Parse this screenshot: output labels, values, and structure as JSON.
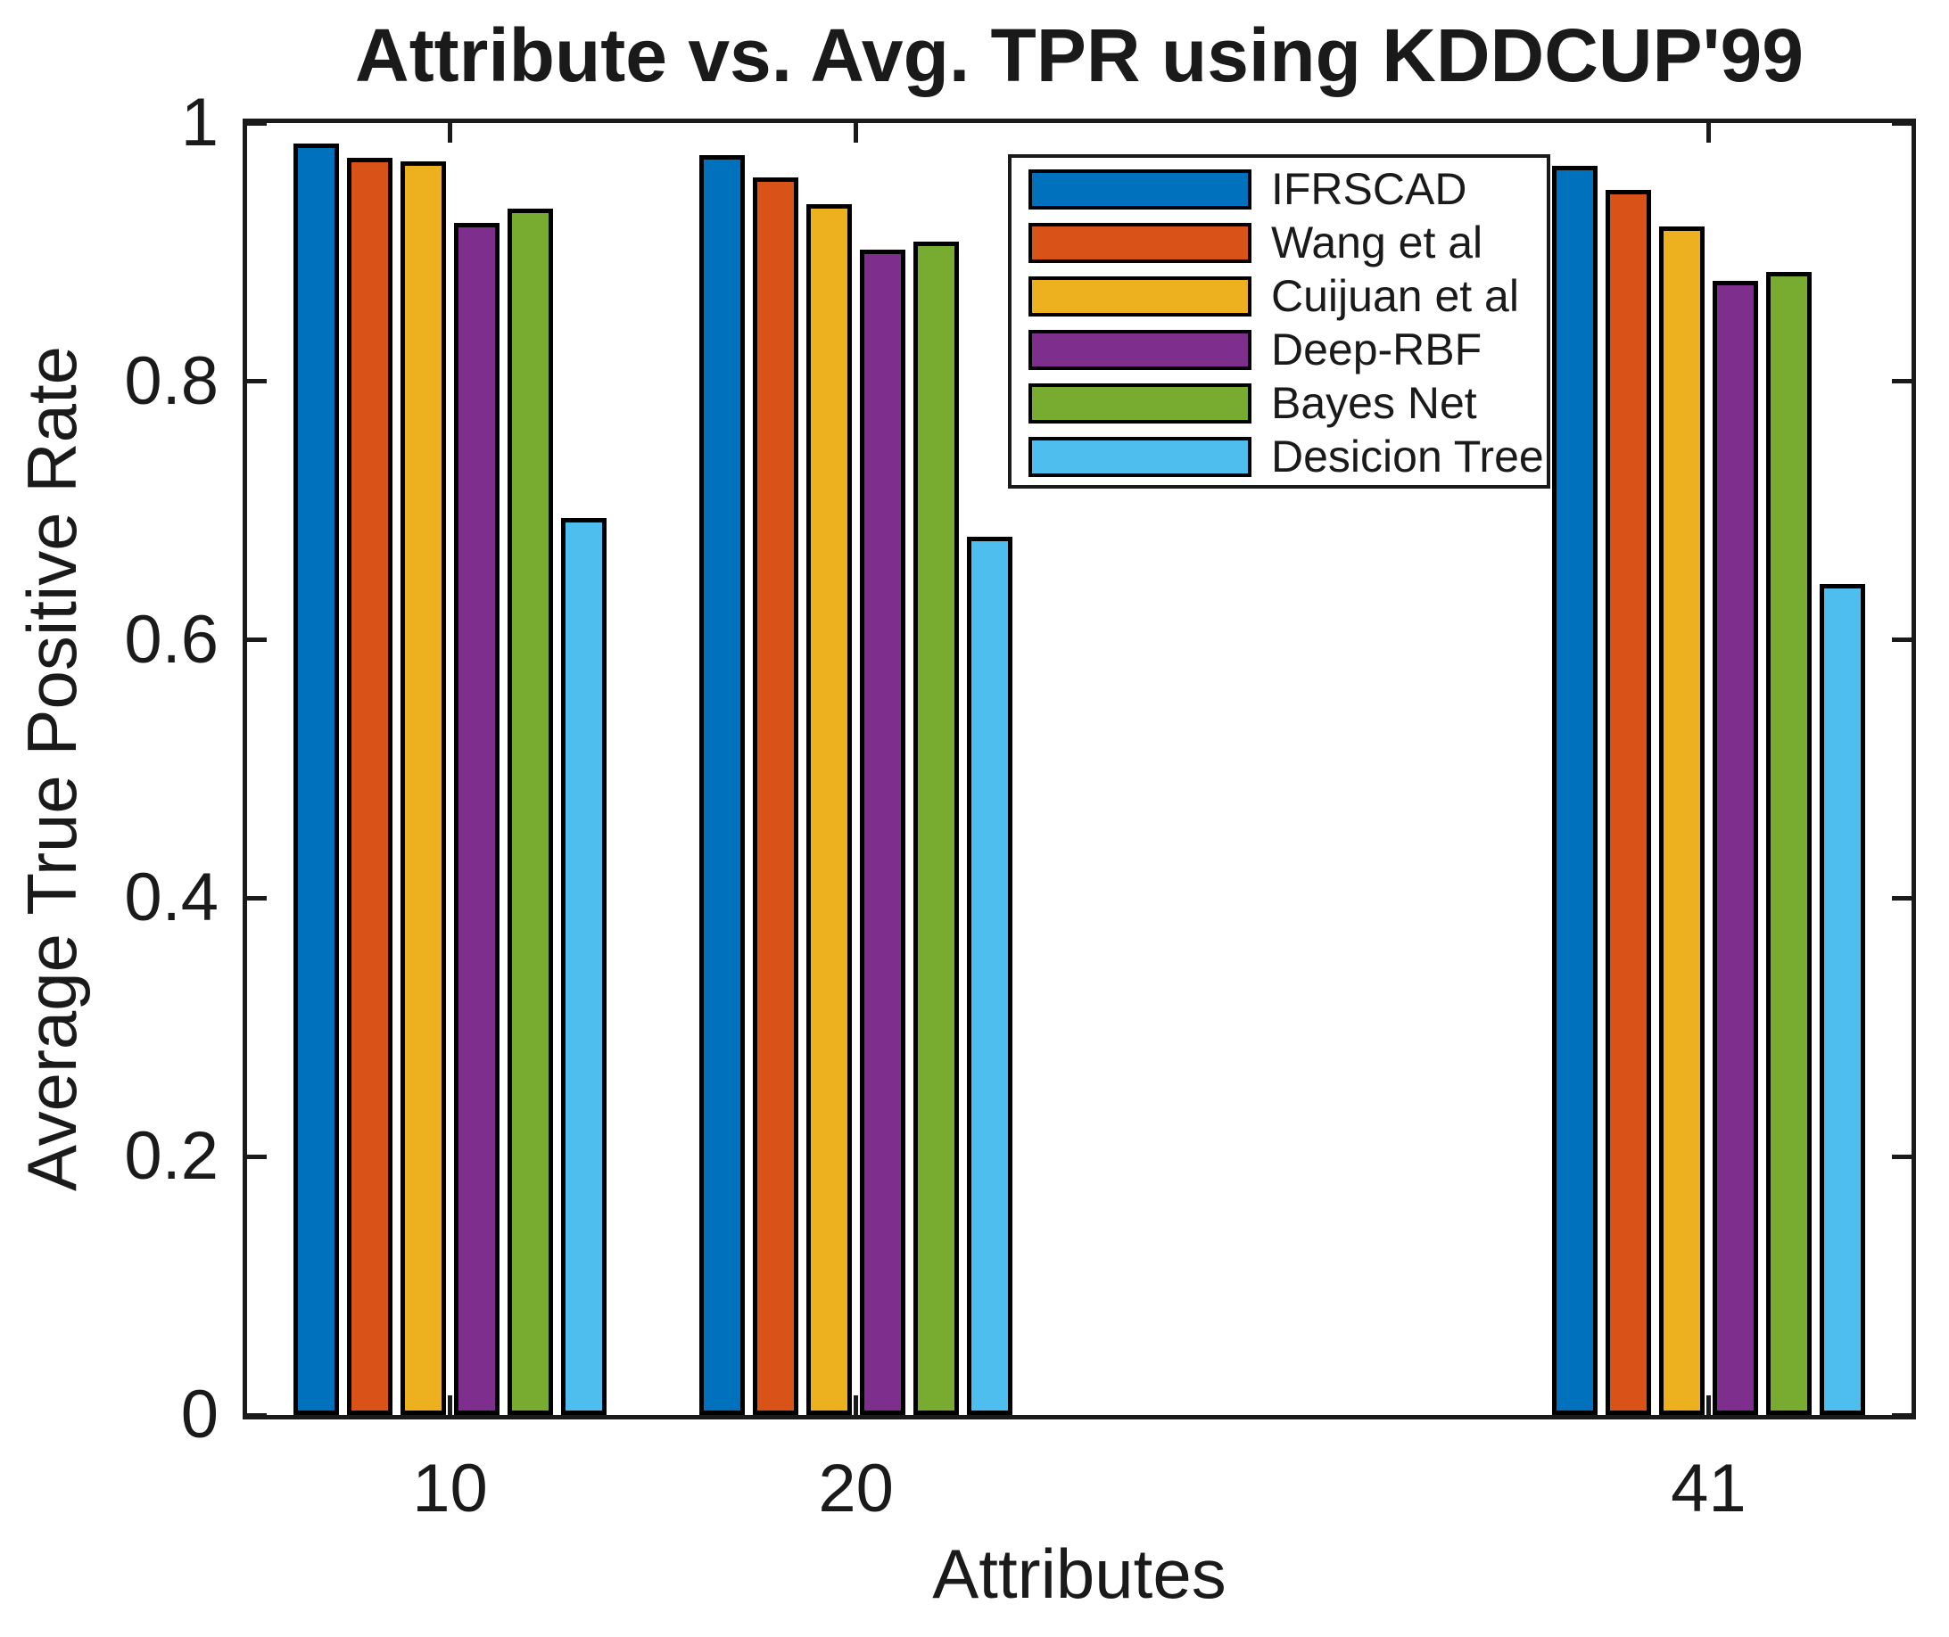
{
  "title": "Attribute vs. Avg. TPR using KDDCUP'99",
  "axis_color": "#1a1a1a",
  "chart_data": {
    "type": "bar",
    "title": "Attribute vs. Avg. TPR using KDDCUP'99",
    "xlabel": "Attributes",
    "ylabel": "Average True Positive Rate",
    "categories": [
      10,
      20,
      41
    ],
    "xtick_labels": [
      "10",
      "20",
      "41"
    ],
    "yticks": [
      0,
      0.2,
      0.4,
      0.6,
      0.8,
      1
    ],
    "ytick_labels": [
      "0",
      "0.2",
      "0.4",
      "0.6",
      "0.8",
      "1"
    ],
    "xlim": [
      5,
      46
    ],
    "ylim": [
      0,
      1
    ],
    "grid": false,
    "legend_position": "upper-right-inside",
    "series": [
      {
        "name": "IFRSCAD",
        "color": "#0072BD",
        "values": [
          0.984,
          0.975,
          0.967
        ]
      },
      {
        "name": "Wang et al",
        "color": "#D95319",
        "values": [
          0.973,
          0.958,
          0.948
        ]
      },
      {
        "name": "Cuijuan et al",
        "color": "#EDB120",
        "values": [
          0.97,
          0.937,
          0.92
        ]
      },
      {
        "name": "Deep-RBF",
        "color": "#7E2F8E",
        "values": [
          0.923,
          0.902,
          0.878
        ]
      },
      {
        "name": "Bayes Net",
        "color": "#77AC30",
        "values": [
          0.934,
          0.908,
          0.885
        ]
      },
      {
        "name": "Desicion Tree",
        "color": "#4DBEEE",
        "values": [
          0.694,
          0.68,
          0.643
        ]
      }
    ]
  }
}
